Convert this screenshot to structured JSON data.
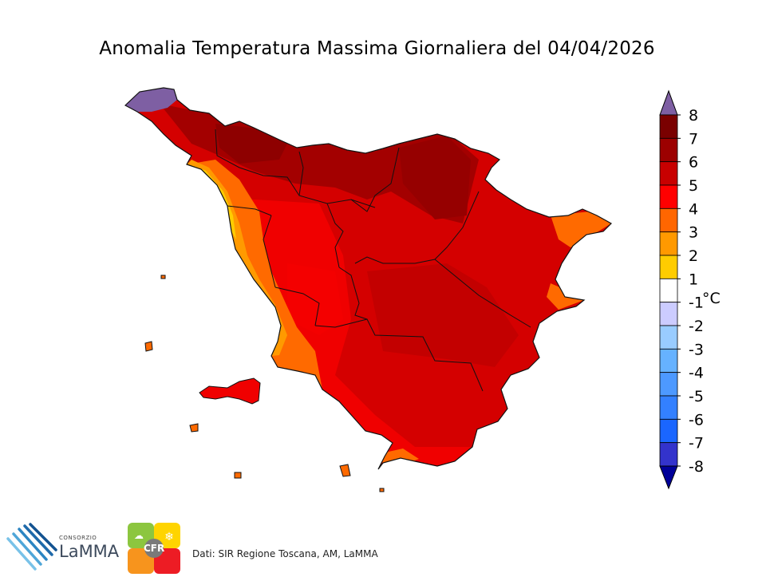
{
  "title": "Anomalia Temperatura Massima Giornaliera del 04/04/2026",
  "legend": {
    "unit": "°C",
    "ticks": [
      "8",
      "7",
      "6",
      "5",
      "4",
      "3",
      "2",
      "1",
      "-1",
      "-2",
      "-3",
      "-4",
      "-5",
      "-6",
      "-7",
      "-8"
    ],
    "bins": [
      {
        "range": "> 8",
        "color": "#7e5fa3"
      },
      {
        "range": "7 – 8",
        "color": "#7a0000"
      },
      {
        "range": "6 – 7",
        "color": "#9c0000"
      },
      {
        "range": "5 – 6",
        "color": "#c80000"
      },
      {
        "range": "4 – 5",
        "color": "#ff0000"
      },
      {
        "range": "3 – 4",
        "color": "#ff6600"
      },
      {
        "range": "2 – 3",
        "color": "#ff9900"
      },
      {
        "range": "1 – 2",
        "color": "#ffcc00"
      },
      {
        "range": "-1 – 1",
        "color": "#ffffff"
      },
      {
        "range": "-2 – -1",
        "color": "#ccccff"
      },
      {
        "range": "-3 – -2",
        "color": "#99ccff"
      },
      {
        "range": "-4 – -3",
        "color": "#66b2ff"
      },
      {
        "range": "-5 – -4",
        "color": "#4d99ff"
      },
      {
        "range": "-6 – -5",
        "color": "#3380ff"
      },
      {
        "range": "-7 – -6",
        "color": "#1a66ff"
      },
      {
        "range": "-8 – -7",
        "color": "#3333cc"
      },
      {
        "range": "< -8",
        "color": "#000099"
      }
    ]
  },
  "footer": {
    "credit": "Dati: SIR Regione Toscana, AM, LaMMA",
    "lamma_small": "CONSORZIO",
    "lamma_big": "LaMMA",
    "cfr_text": "CFR"
  }
}
